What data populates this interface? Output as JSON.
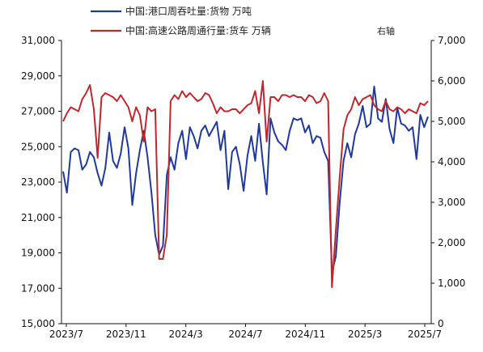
{
  "chart_data": {
    "type": "line",
    "legend": [
      {
        "label": "中国:港口周吞吐量:货物 万吨",
        "color": "#1f3a9c"
      },
      {
        "label": "中国:高速公路周通行量:货车 万辆",
        "color": "#c0262d"
      }
    ],
    "right_axis_note": "右轴",
    "x_tick_labels": [
      "2023/7",
      "2023/11",
      "2024/3",
      "2024/7",
      "2024/11",
      "2025/3",
      "2025/7"
    ],
    "y_left": {
      "min": 15000,
      "max": 31000,
      "ticks": [
        "15,000",
        "17,000",
        "19,000",
        "21,000",
        "23,000",
        "25,000",
        "27,000",
        "29,000",
        "31,000"
      ]
    },
    "y_right": {
      "min": 0,
      "max": 7000,
      "ticks": [
        "0",
        "1,000",
        "2,000",
        "3,000",
        "4,000",
        "5,000",
        "6,000",
        "7,000"
      ]
    },
    "grid": false,
    "legend_position": "top",
    "series": [
      {
        "name": "中国:港口周吞吐量:货物 万吨",
        "axis": "left",
        "color": "#1f3a9c",
        "values": [
          23600,
          22400,
          24700,
          24900,
          24800,
          23700,
          24000,
          24700,
          24400,
          23500,
          22800,
          23800,
          25800,
          24200,
          23800,
          24600,
          26100,
          24900,
          21700,
          23500,
          24800,
          25900,
          24400,
          22400,
          20000,
          18900,
          19400,
          23400,
          24400,
          23700,
          25200,
          25900,
          24300,
          26100,
          25600,
          24900,
          25900,
          26200,
          25600,
          26000,
          26400,
          24800,
          25900,
          22600,
          24700,
          25000,
          24000,
          22500,
          24500,
          25600,
          24200,
          26300,
          24100,
          22300,
          26600,
          25800,
          25300,
          25100,
          24800,
          25900,
          26600,
          26500,
          26600,
          25800,
          26200,
          25200,
          25600,
          25500,
          24700,
          24200,
          17900,
          18800,
          21800,
          24200,
          25200,
          24400,
          25700,
          26300,
          27300,
          26100,
          26300,
          28400,
          26600,
          26400,
          27700,
          26000,
          25200,
          27200,
          26300,
          26200,
          25900,
          26100,
          24300,
          26800,
          26100,
          26700
        ]
      },
      {
        "name": "中国:高速公路周通行量:货车 万辆",
        "axis": "right",
        "color": "#c0262d",
        "values": [
          5000,
          5200,
          5350,
          5300,
          5250,
          5550,
          5700,
          5900,
          5300,
          4100,
          5600,
          5700,
          5650,
          5600,
          5500,
          5650,
          5500,
          5350,
          5000,
          5350,
          5150,
          4500,
          5350,
          5250,
          5300,
          1600,
          1600,
          2200,
          5500,
          5650,
          5550,
          5750,
          5600,
          5700,
          5600,
          5500,
          5550,
          5700,
          5650,
          5450,
          5200,
          5350,
          5250,
          5250,
          5300,
          5300,
          5200,
          5300,
          5400,
          5450,
          5750,
          5200,
          6000,
          4500,
          5600,
          5600,
          5500,
          5650,
          5650,
          5600,
          5650,
          5600,
          5600,
          5500,
          5650,
          5600,
          5450,
          5500,
          5700,
          5500,
          900,
          2300,
          3600,
          4800,
          5150,
          5300,
          5600,
          5400,
          5550,
          5600,
          5650,
          5400,
          5300,
          5250,
          5500,
          5300,
          5250,
          5350,
          5300,
          5200,
          5300,
          5250,
          5200,
          5450,
          5400,
          5500
        ]
      }
    ]
  }
}
